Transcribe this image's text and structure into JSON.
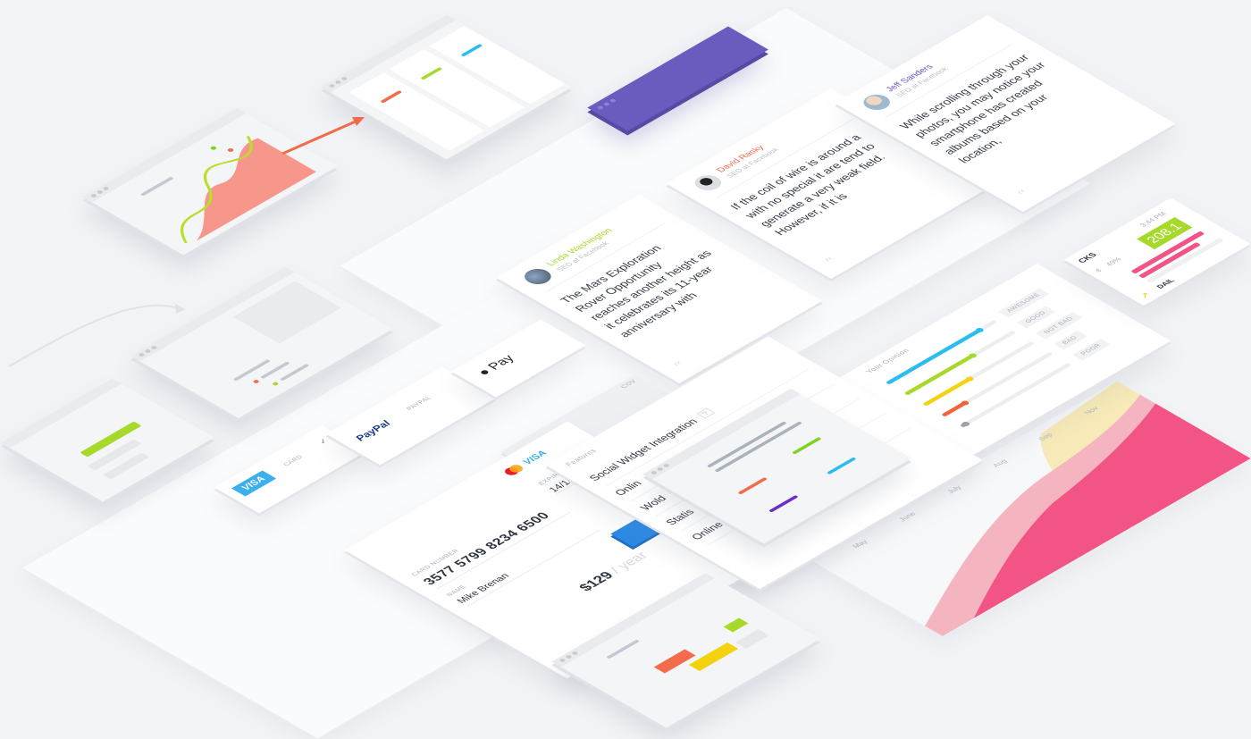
{
  "testimonials": [
    {
      "name": "Linda Washington",
      "role": "SEO at Facebook",
      "text": "The Mars Exploration Rover Opportunity reaches another height as it celebrates its 11-year anniversary with",
      "color": "#a6d92a"
    },
    {
      "name": "David Rasky",
      "role": "SEO at Facebook",
      "text": "If the coil of wire is around a with no special it are tend to generate a very weak field. However, if it is",
      "color": "#f26b4a"
    },
    {
      "name": "Jeff Sanders",
      "role": "SEO at Facebook",
      "text": "While scrolling through your photos, you may notice your smartphone has created albums based on your location,",
      "color": "#6b4fc8"
    }
  ],
  "quote_icon": "“",
  "opinion": {
    "title": "Your Opinion",
    "rows": [
      {
        "label": "AWESOME",
        "value": 0.85,
        "color": "#2bbcf0"
      },
      {
        "label": "GOOD",
        "value": 0.62,
        "color": "#a6d92a"
      },
      {
        "label": "NOT BAD",
        "value": 0.42,
        "color": "#f5d20f"
      },
      {
        "label": "BAD",
        "value": 0.2,
        "color": "#f2643a"
      },
      {
        "label": "POOR",
        "value": 0.04,
        "color": "#9aa1aa"
      }
    ]
  },
  "stats": {
    "time": "3:44 PM",
    "value": "208.1",
    "label": "CKS",
    "count": "4",
    "percent": "49%",
    "footer": "DAIL",
    "accent": "#a6d92a",
    "bar_color": "#f25585"
  },
  "features": {
    "header": "Features",
    "items": [
      "Social Widget Integration",
      "Onlin",
      "Wold",
      "Statis",
      "Online Operator"
    ],
    "help_icon": "?"
  },
  "area_chart": {
    "months": [
      "May",
      "June",
      "July",
      "Aug",
      "Sep",
      "Nov"
    ],
    "colors": [
      "#f7eab8",
      "#f5b5c0",
      "#f25585"
    ]
  },
  "payment": {
    "options": [
      {
        "brand": "VISA",
        "label": "CARD"
      },
      {
        "brand": "PayPal",
        "label": "PAYPAL"
      },
      {
        "brand": "Pay",
        "label": ""
      }
    ],
    "card_brand": "VISA",
    "card_number_label": "CARD NUMBER",
    "card_number": "3577 5799 8234 6500",
    "name_label": "NAME",
    "name": "Mike Brenan",
    "expire_label": "EXPIRE",
    "expire": "14/18",
    "price": "$129",
    "period": "/ year",
    "cov": "COV",
    "button_color": "#2b8ae6"
  }
}
